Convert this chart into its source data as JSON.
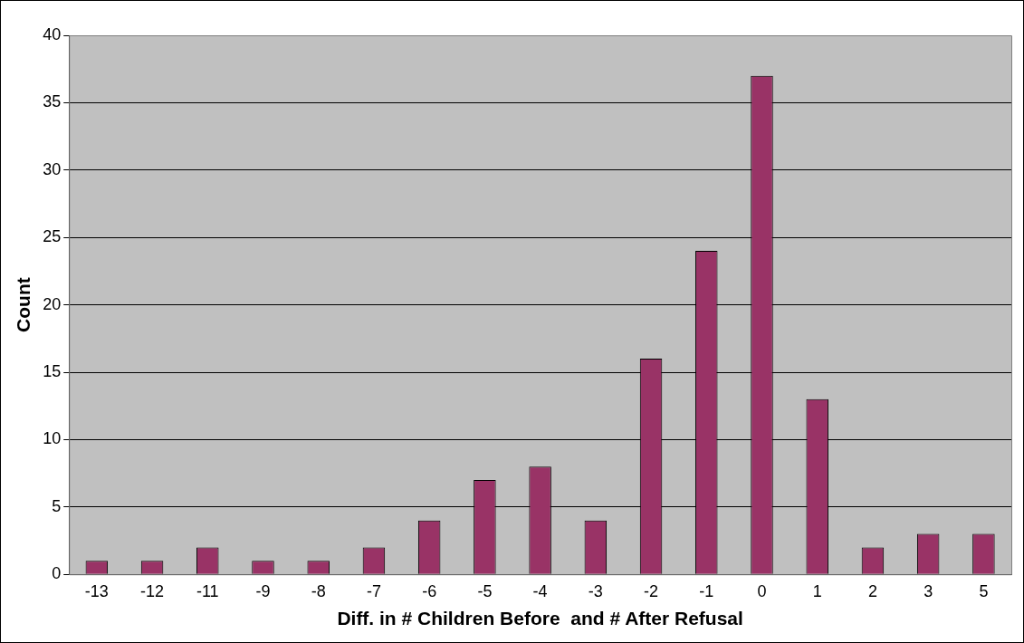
{
  "chart_data": {
    "type": "bar",
    "xlabel": "Diff. in # Children Before  and # After Refusal",
    "ylabel": "Count",
    "categories": [
      "-13",
      "-12",
      "-11",
      "-9",
      "-8",
      "-7",
      "-6",
      "-5",
      "-4",
      "-3",
      "-2",
      "-1",
      "0",
      "1",
      "2",
      "3",
      "5"
    ],
    "values": [
      1,
      1,
      2,
      1,
      1,
      2,
      4,
      7,
      8,
      4,
      16,
      24,
      37,
      13,
      2,
      3,
      3
    ],
    "color": "#993366",
    "ylim": [
      0,
      40
    ],
    "yticks": [
      0,
      5,
      10,
      15,
      20,
      25,
      30,
      35,
      40
    ],
    "grid": "y",
    "legend": false
  }
}
